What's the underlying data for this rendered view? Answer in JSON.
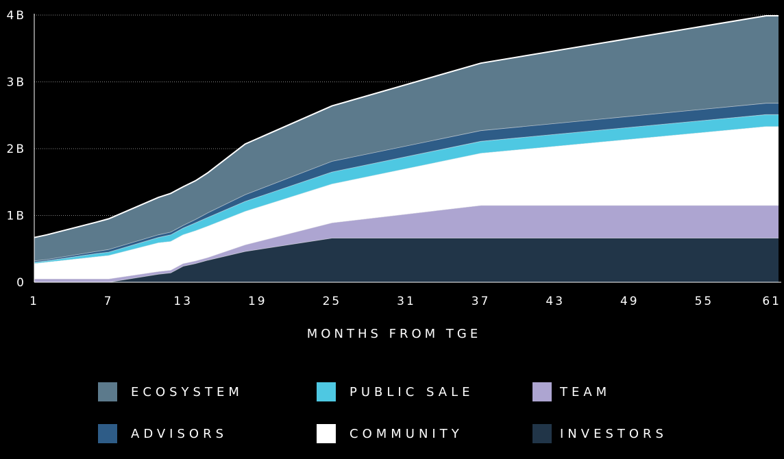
{
  "chart_data": {
    "type": "area",
    "stacked": true,
    "title": "",
    "xlabel": "MONTHS FROM TGE",
    "ylabel": "",
    "xlim": [
      1,
      61
    ],
    "ylim": [
      0,
      4
    ],
    "x_ticks": [
      1,
      7,
      13,
      19,
      25,
      31,
      37,
      43,
      49,
      55,
      61
    ],
    "y_ticks": [
      {
        "value": 0,
        "label": "0"
      },
      {
        "value": 1,
        "label": "1B"
      },
      {
        "value": 2,
        "label": "2B"
      },
      {
        "value": 3,
        "label": "3B"
      },
      {
        "value": 4,
        "label": "4B"
      }
    ],
    "grid": "horizontal dotted",
    "legend_position": "bottom",
    "x": [
      1,
      2,
      6,
      7,
      11,
      12,
      13,
      14,
      15,
      18,
      25,
      37,
      60,
      61
    ],
    "series": [
      {
        "name": "INVESTORS",
        "color": "#213548",
        "values": [
          0,
          0,
          0,
          0,
          0.12,
          0.14,
          0.24,
          0.28,
          0.33,
          0.46,
          0.66,
          0.66,
          0.66,
          0.66
        ]
      },
      {
        "name": "TEAM",
        "color": "#ada5d1",
        "values": [
          0.05,
          0.05,
          0.05,
          0.05,
          0.04,
          0.04,
          0.04,
          0.04,
          0.04,
          0.1,
          0.23,
          0.49,
          0.49,
          0.49
        ]
      },
      {
        "name": "COMMUNITY",
        "color": "#ffffff",
        "values": [
          0.23,
          0.25,
          0.33,
          0.35,
          0.43,
          0.43,
          0.43,
          0.45,
          0.47,
          0.5,
          0.58,
          0.78,
          1.18,
          1.18
        ]
      },
      {
        "name": "PUBLIC SALE",
        "color": "#4ec8e2",
        "values": [
          0.02,
          0.02,
          0.05,
          0.05,
          0.08,
          0.1,
          0.1,
          0.12,
          0.13,
          0.15,
          0.18,
          0.18,
          0.18,
          0.18
        ]
      },
      {
        "name": "ADVISORS",
        "color": "#2e5c87",
        "values": [
          0.02,
          0.02,
          0.03,
          0.04,
          0.04,
          0.04,
          0.04,
          0.05,
          0.07,
          0.1,
          0.16,
          0.16,
          0.17,
          0.17
        ]
      },
      {
        "name": "ECOSYSTEM",
        "color": "#5c7a8c",
        "values": [
          0.35,
          0.37,
          0.44,
          0.46,
          0.56,
          0.58,
          0.58,
          0.58,
          0.6,
          0.76,
          0.83,
          1.01,
          1.31,
          1.31
        ]
      }
    ]
  },
  "legend": [
    {
      "label": "ECOSYSTEM",
      "color": "#5c7a8c"
    },
    {
      "label": "PUBLIC SALE",
      "color": "#4ec8e2"
    },
    {
      "label": "TEAM",
      "color": "#ada5d1"
    },
    {
      "label": "ADVISORS",
      "color": "#2e5c87"
    },
    {
      "label": "COMMUNITY",
      "color": "#ffffff"
    },
    {
      "label": "INVESTORS",
      "color": "#213548"
    }
  ]
}
